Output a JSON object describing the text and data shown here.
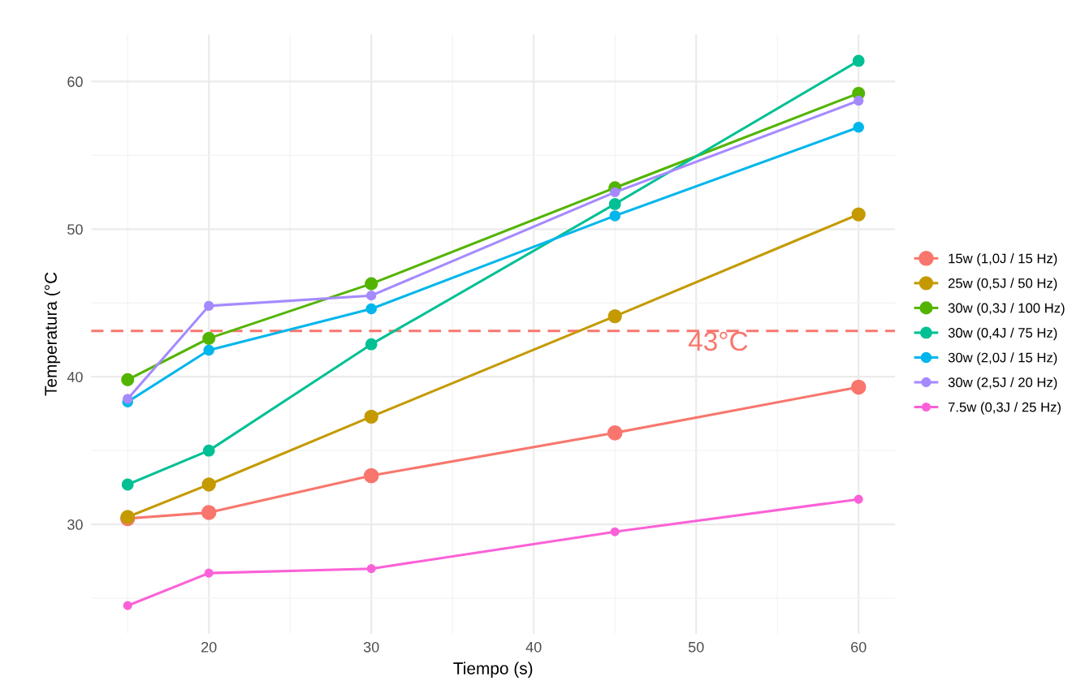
{
  "chart_data": {
    "type": "line",
    "xlabel": "Tiempo (s)",
    "ylabel": "Temperatura (°C",
    "x": [
      15,
      20,
      30,
      45,
      60
    ],
    "series": [
      {
        "name": "15w (1,0J / 15 Hz)",
        "color": "#f8766d",
        "values": [
          30.4,
          30.8,
          33.3,
          36.2,
          39.3
        ]
      },
      {
        "name": "25w (0,5J / 50 Hz)",
        "color": "#c49a00",
        "values": [
          30.5,
          32.7,
          37.3,
          44.1,
          51.0
        ]
      },
      {
        "name": "30w (0,3J / 100 Hz)",
        "color": "#53b400",
        "values": [
          39.8,
          42.6,
          46.3,
          52.8,
          59.2
        ]
      },
      {
        "name": "30w (0,4J / 75 Hz)",
        "color": "#00c094",
        "values": [
          32.7,
          35.0,
          42.2,
          51.7,
          61.4
        ]
      },
      {
        "name": "30w (2,0J / 15 Hz)",
        "color": "#00b6eb",
        "values": [
          38.3,
          41.8,
          44.6,
          50.9,
          56.9
        ]
      },
      {
        "name": "30w (2,5J / 20 Hz)",
        "color": "#a58aff",
        "values": [
          38.5,
          44.8,
          45.5,
          52.5,
          58.7
        ]
      },
      {
        "name": "7.5w (0,3J / 25 Hz)",
        "color": "#fb61d7",
        "values": [
          24.5,
          26.7,
          27.0,
          29.5,
          31.7
        ]
      }
    ],
    "xlim": [
      12.75,
      62.25
    ],
    "xticks": [
      20,
      30,
      40,
      50,
      60
    ],
    "ylim": [
      22.6,
      63.2
    ],
    "yticks": [
      30,
      40,
      50,
      60
    ],
    "ref_lines": [
      {
        "axis": "y",
        "value": 43.1,
        "label": "43°C",
        "color": "#f8766d",
        "line_style": "dashed"
      }
    ],
    "grid": true,
    "legend": "right",
    "marker": "circle",
    "line_style": "solid"
  }
}
